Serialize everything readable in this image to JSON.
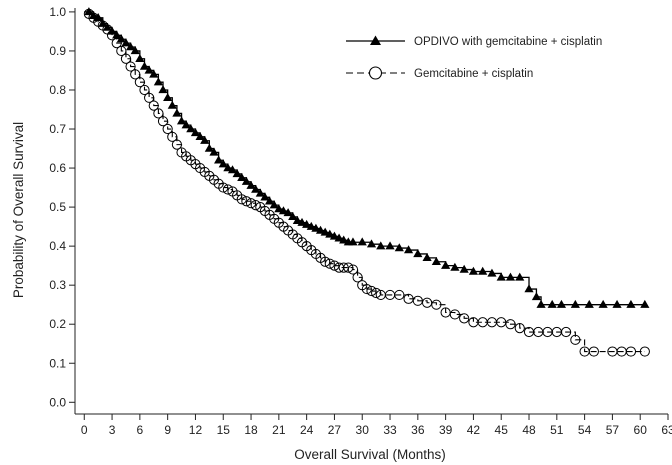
{
  "chart_data": {
    "type": "line",
    "subtype": "kaplan-meier-step",
    "xlabel": "Overall Survival (Months)",
    "ylabel": "Probability of Overall Survival",
    "xlim": [
      -1,
      63
    ],
    "ylim": [
      -0.03,
      1.01
    ],
    "x_ticks": [
      "0",
      "3",
      "6",
      "9",
      "12",
      "15",
      "18",
      "21",
      "24",
      "27",
      "30",
      "33",
      "36",
      "39",
      "42",
      "45",
      "48",
      "51",
      "54",
      "57",
      "60",
      "63"
    ],
    "y_ticks": [
      "0.0",
      "0.1",
      "0.2",
      "0.3",
      "0.4",
      "0.5",
      "0.6",
      "0.7",
      "0.8",
      "0.9",
      "1.0"
    ],
    "grid": false,
    "legend_position": "top-right",
    "series": [
      {
        "name": "OPDIVO with gemcitabine + cisplatin",
        "color": "#000000",
        "line_style": "solid",
        "marker": "filled-triangle",
        "x": [
          0,
          0.5,
          1,
          1.5,
          2,
          2.5,
          3,
          3.5,
          4,
          4.5,
          5,
          5.5,
          6,
          6.5,
          7,
          7.5,
          8,
          8.5,
          9,
          9.5,
          10,
          10.5,
          11,
          11.5,
          12,
          12.5,
          13,
          13.5,
          14,
          14.5,
          15,
          15.5,
          16,
          16.5,
          17,
          17.5,
          18,
          18.5,
          19,
          19.5,
          20,
          20.5,
          21,
          21.5,
          22,
          22.5,
          23,
          23.5,
          24,
          24.5,
          25,
          25.5,
          26,
          26.5,
          27,
          27.5,
          28,
          28.5,
          29,
          30,
          31,
          32,
          33,
          34,
          35,
          36,
          37,
          38,
          39,
          40,
          41,
          42,
          43,
          44,
          45,
          46,
          47,
          48,
          48.8,
          49.3,
          50.5,
          51.5,
          53,
          54.5,
          56,
          57.5,
          59,
          60.5
        ],
        "y": [
          1.0,
          1.0,
          0.99,
          0.985,
          0.97,
          0.96,
          0.95,
          0.94,
          0.93,
          0.92,
          0.91,
          0.9,
          0.88,
          0.86,
          0.85,
          0.84,
          0.82,
          0.8,
          0.78,
          0.76,
          0.74,
          0.72,
          0.71,
          0.7,
          0.69,
          0.68,
          0.67,
          0.65,
          0.64,
          0.62,
          0.61,
          0.6,
          0.595,
          0.585,
          0.575,
          0.565,
          0.555,
          0.545,
          0.535,
          0.525,
          0.515,
          0.505,
          0.495,
          0.49,
          0.485,
          0.475,
          0.465,
          0.46,
          0.455,
          0.45,
          0.445,
          0.44,
          0.435,
          0.43,
          0.425,
          0.42,
          0.415,
          0.41,
          0.41,
          0.41,
          0.405,
          0.4,
          0.4,
          0.395,
          0.39,
          0.38,
          0.37,
          0.36,
          0.35,
          0.345,
          0.34,
          0.335,
          0.335,
          0.33,
          0.32,
          0.32,
          0.32,
          0.29,
          0.27,
          0.25,
          0.25,
          0.25,
          0.25,
          0.25,
          0.25,
          0.25,
          0.25,
          0.25
        ]
      },
      {
        "name": "Gemcitabine + cisplatin",
        "color": "#000000",
        "line_style": "dashed",
        "marker": "open-circle",
        "x": [
          0,
          0.5,
          1,
          1.5,
          2,
          2.5,
          3,
          3.5,
          4,
          4.5,
          5,
          5.5,
          6,
          6.5,
          7,
          7.5,
          8,
          8.5,
          9,
          9.5,
          10,
          10.5,
          11,
          11.5,
          12,
          12.5,
          13,
          13.5,
          14,
          14.5,
          15,
          15.5,
          16,
          16.5,
          17,
          17.5,
          18,
          18.5,
          19,
          19.5,
          20,
          20.5,
          21,
          21.5,
          22,
          22.5,
          23,
          23.5,
          24,
          24.5,
          25,
          25.5,
          26,
          26.5,
          27,
          27.5,
          28,
          28.5,
          29,
          29.5,
          30,
          30.5,
          31,
          31.5,
          32,
          33,
          34,
          35,
          36,
          37,
          38,
          39,
          40,
          41,
          42,
          43,
          44,
          45,
          46,
          47,
          48,
          49,
          50,
          51,
          52,
          53,
          54,
          55,
          57,
          58,
          59,
          60.5
        ],
        "y": [
          1.0,
          0.995,
          0.985,
          0.975,
          0.965,
          0.955,
          0.94,
          0.92,
          0.9,
          0.88,
          0.86,
          0.84,
          0.82,
          0.8,
          0.78,
          0.76,
          0.74,
          0.72,
          0.7,
          0.68,
          0.66,
          0.64,
          0.63,
          0.62,
          0.61,
          0.6,
          0.59,
          0.58,
          0.57,
          0.56,
          0.55,
          0.545,
          0.54,
          0.53,
          0.52,
          0.515,
          0.51,
          0.505,
          0.5,
          0.49,
          0.48,
          0.47,
          0.46,
          0.45,
          0.44,
          0.43,
          0.42,
          0.41,
          0.4,
          0.39,
          0.38,
          0.37,
          0.36,
          0.355,
          0.35,
          0.345,
          0.345,
          0.345,
          0.34,
          0.32,
          0.3,
          0.29,
          0.285,
          0.28,
          0.275,
          0.275,
          0.275,
          0.265,
          0.26,
          0.255,
          0.25,
          0.23,
          0.225,
          0.215,
          0.205,
          0.205,
          0.205,
          0.205,
          0.2,
          0.19,
          0.18,
          0.18,
          0.18,
          0.18,
          0.18,
          0.16,
          0.13,
          0.13,
          0.13,
          0.13,
          0.13,
          0.13
        ]
      }
    ]
  }
}
